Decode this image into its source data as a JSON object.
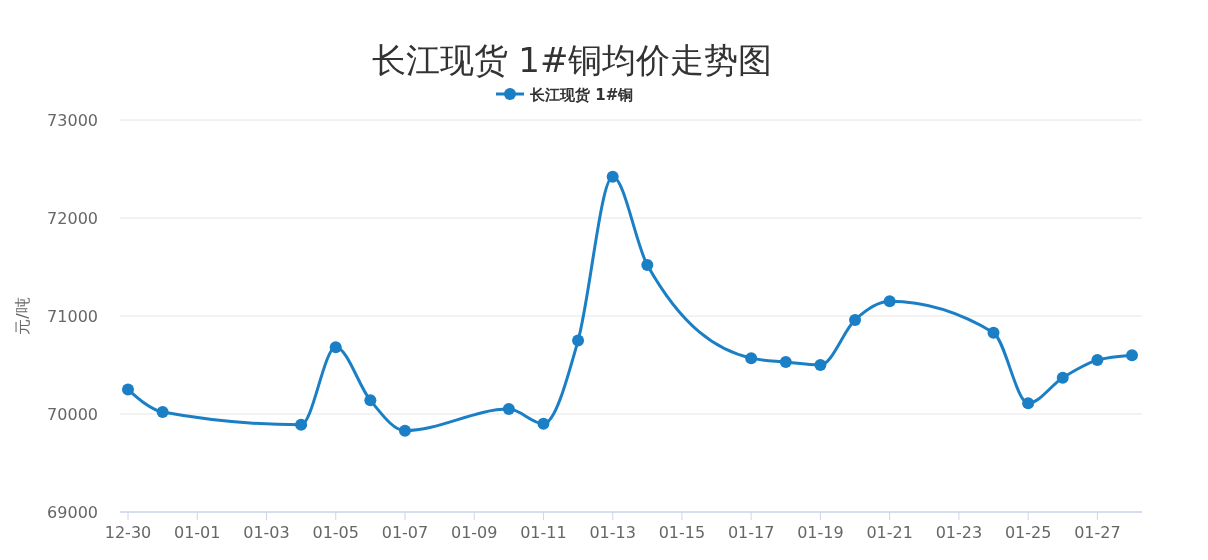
{
  "chart_data": {
    "type": "line",
    "title": "长江现货 1#铜均价走势图",
    "ylabel": "元/吨",
    "categories": [
      "12-30",
      null,
      "01-01",
      null,
      "01-03",
      null,
      "01-05",
      null,
      "01-07",
      null,
      "01-09",
      null,
      "01-11",
      null,
      "01-13",
      null,
      "01-15",
      null,
      "01-17",
      null,
      "01-19",
      null,
      "01-21",
      null,
      "01-23",
      null,
      "01-25",
      null,
      "01-27",
      null
    ],
    "series": [
      {
        "name": "长江现货 1#铜",
        "color": "#1a7fc4",
        "values": [
          70250,
          70020,
          null,
          null,
          null,
          69890,
          70680,
          70140,
          69830,
          null,
          null,
          70050,
          69900,
          70750,
          72420,
          71520,
          null,
          null,
          70570,
          70530,
          70500,
          70960,
          71150,
          null,
          null,
          70830,
          70110,
          70370,
          70550,
          70600
        ]
      }
    ],
    "ylim": [
      69000,
      73000
    ],
    "yticks": [
      69000,
      70000,
      71000,
      72000,
      73000
    ],
    "grid": "y",
    "legend": "top",
    "marker": "circle",
    "line_style": "solid"
  }
}
